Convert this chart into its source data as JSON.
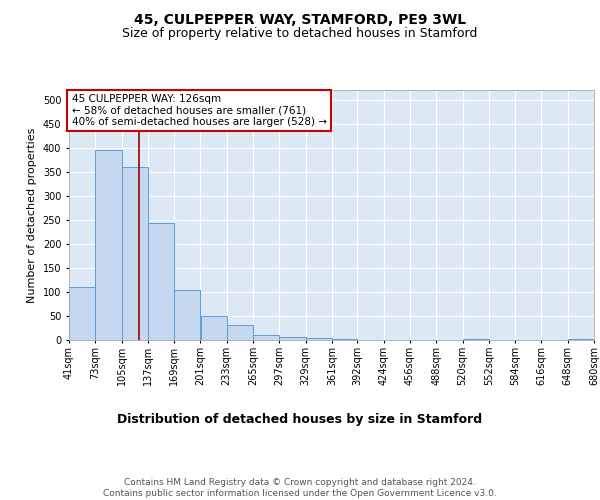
{
  "title": "45, CULPEPPER WAY, STAMFORD, PE9 3WL",
  "subtitle": "Size of property relative to detached houses in Stamford",
  "xlabel": "Distribution of detached houses by size in Stamford",
  "ylabel": "Number of detached properties",
  "bin_edges": [
    41,
    73,
    105,
    137,
    169,
    201,
    233,
    265,
    297,
    329,
    361,
    392,
    424,
    456,
    488,
    520,
    552,
    584,
    616,
    648,
    680
  ],
  "bar_heights": [
    110,
    395,
    360,
    243,
    105,
    50,
    32,
    10,
    7,
    5,
    2,
    0,
    0,
    0,
    0,
    2,
    0,
    0,
    0,
    2
  ],
  "bar_color": "#c5d8f0",
  "bar_edge_color": "#5b9bd5",
  "property_size": 126,
  "vline_color": "#990000",
  "annotation_text": "45 CULPEPPER WAY: 126sqm\n← 58% of detached houses are smaller (761)\n40% of semi-detached houses are larger (528) →",
  "annotation_box_color": "white",
  "annotation_box_edge": "#cc0000",
  "ylim": [
    0,
    520
  ],
  "yticks": [
    0,
    50,
    100,
    150,
    200,
    250,
    300,
    350,
    400,
    450,
    500
  ],
  "background_color": "#dde8f5",
  "grid_color": "#ffffff",
  "footer_text": "Contains HM Land Registry data © Crown copyright and database right 2024.\nContains public sector information licensed under the Open Government Licence v3.0.",
  "title_fontsize": 10,
  "subtitle_fontsize": 9,
  "xlabel_fontsize": 9,
  "ylabel_fontsize": 8,
  "tick_fontsize": 7,
  "annotation_fontsize": 7.5,
  "footer_fontsize": 6.5
}
